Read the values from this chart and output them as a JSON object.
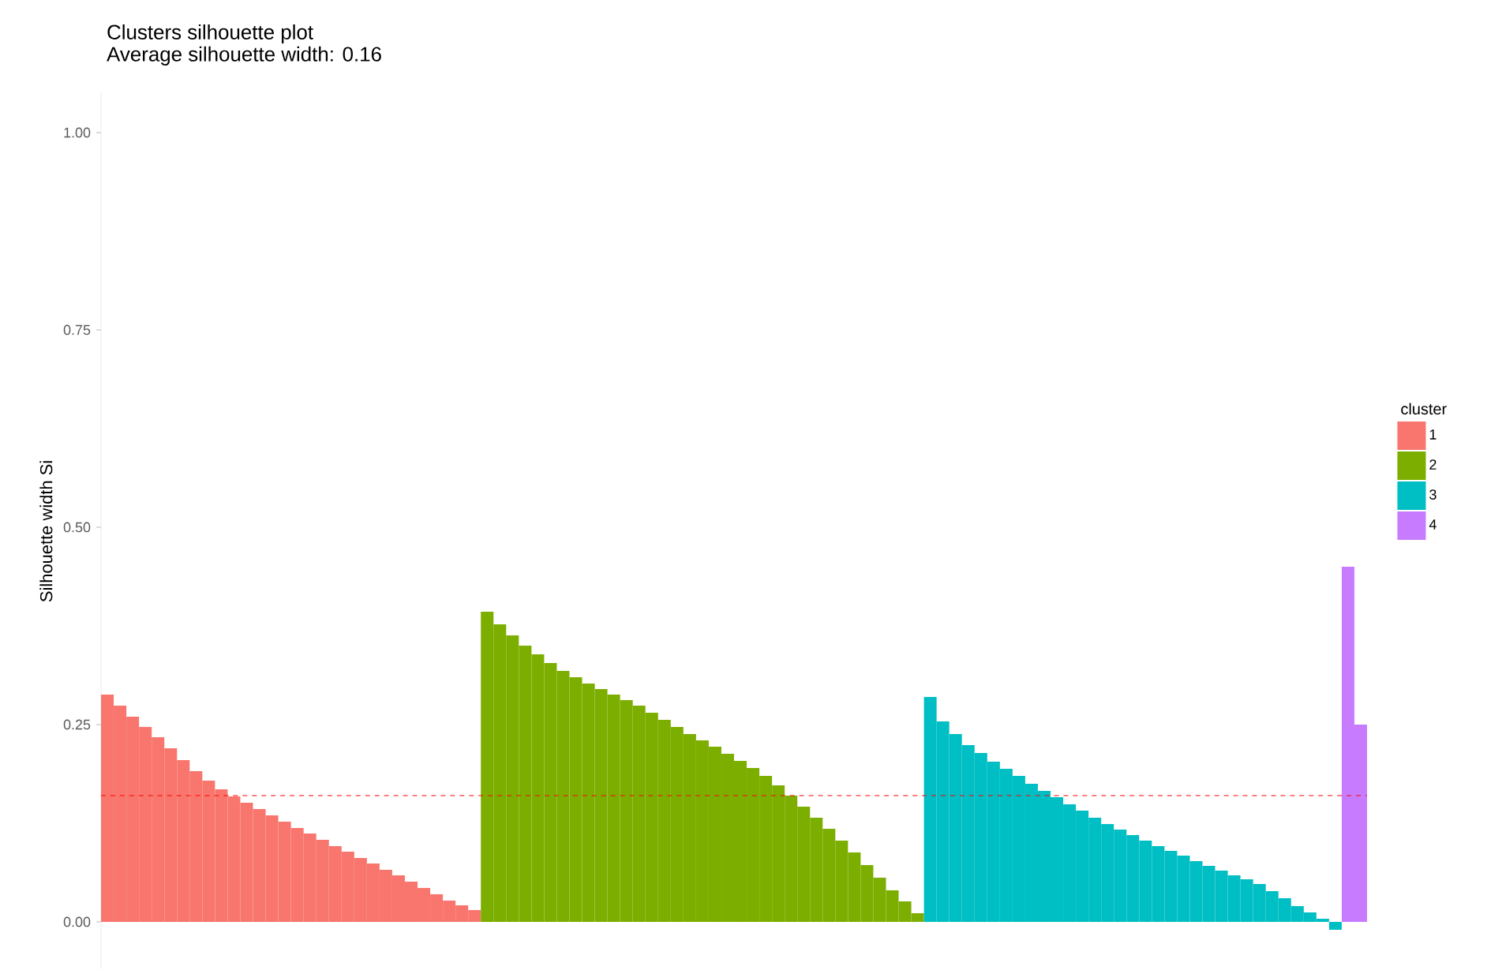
{
  "chart_data": {
    "type": "bar",
    "title": "Clusters silhouette plot",
    "subtitle": "Average silhouette width: 0.16",
    "ylabel": "Silhouette width Si",
    "legend_title": "cluster",
    "legend": "right",
    "tick_labels": "y",
    "grid": false,
    "ylim": [
      -0.06,
      1.05
    ],
    "yticks": [
      {
        "value": 0,
        "label": "0.00"
      },
      {
        "value": 0.25,
        "label": "0.25"
      },
      {
        "value": 0.5,
        "label": "0.50"
      },
      {
        "value": 0.75,
        "label": "0.75"
      },
      {
        "value": 1,
        "label": "1.00"
      }
    ],
    "categories": [
      null,
      null,
      null,
      null,
      null,
      null,
      null,
      null,
      null,
      null,
      null,
      null,
      null,
      null,
      null,
      null,
      null,
      null,
      null,
      null,
      null,
      null,
      null,
      null,
      null,
      null,
      null,
      null,
      null,
      null,
      null,
      null,
      null,
      null,
      null,
      null,
      null,
      null,
      null,
      null,
      null,
      null,
      null,
      null,
      null,
      null,
      null,
      null,
      null,
      null,
      null,
      null,
      null,
      null,
      null,
      null,
      null,
      null,
      null,
      null,
      null,
      null,
      null,
      null,
      null,
      null,
      null,
      null,
      null,
      null,
      null,
      null,
      null,
      null,
      null,
      null,
      null,
      null,
      null,
      null,
      null,
      null,
      null,
      null,
      null,
      null,
      null,
      null,
      null,
      null,
      null,
      null,
      null,
      null,
      null,
      null,
      null,
      null,
      null,
      null
    ],
    "series": [
      {
        "name": "1",
        "color": "#f8766d",
        "values": [
          0.288,
          0.274,
          0.26,
          0.247,
          0.234,
          0.22,
          0.205,
          0.191,
          0.179,
          0.168,
          0.159,
          0.151,
          0.143,
          0.135,
          0.127,
          0.119,
          0.112,
          0.104,
          0.096,
          0.089,
          0.081,
          0.074,
          0.066,
          0.059,
          0.051,
          0.043,
          0.035,
          0.027,
          0.021,
          0.015,
          null,
          null,
          null,
          null,
          null,
          null,
          null,
          null,
          null,
          null,
          null,
          null,
          null,
          null,
          null,
          null,
          null,
          null,
          null,
          null,
          null,
          null,
          null,
          null,
          null,
          null,
          null,
          null,
          null,
          null,
          null,
          null,
          null,
          null,
          null,
          null,
          null,
          null,
          null,
          null,
          null,
          null,
          null,
          null,
          null,
          null,
          null,
          null,
          null,
          null,
          null,
          null,
          null,
          null,
          null,
          null,
          null,
          null,
          null,
          null,
          null,
          null,
          null,
          null,
          null,
          null,
          null,
          null,
          null,
          null
        ]
      },
      {
        "name": "2",
        "color": "#7cae00",
        "values": [
          null,
          null,
          null,
          null,
          null,
          null,
          null,
          null,
          null,
          null,
          null,
          null,
          null,
          null,
          null,
          null,
          null,
          null,
          null,
          null,
          null,
          null,
          null,
          null,
          null,
          null,
          null,
          null,
          null,
          null,
          0.393,
          0.377,
          0.363,
          0.35,
          0.339,
          0.328,
          0.318,
          0.31,
          0.302,
          0.295,
          0.288,
          0.281,
          0.274,
          0.265,
          0.256,
          0.247,
          0.238,
          0.23,
          0.222,
          0.213,
          0.204,
          0.195,
          0.185,
          0.173,
          0.16,
          0.146,
          0.132,
          0.118,
          0.103,
          0.088,
          0.072,
          0.056,
          0.04,
          0.026,
          0.011,
          null,
          null,
          null,
          null,
          null,
          null,
          null,
          null,
          null,
          null,
          null,
          null,
          null,
          null,
          null,
          null,
          null,
          null,
          null,
          null,
          null,
          null,
          null,
          null,
          null,
          null,
          null,
          null,
          null,
          null,
          null,
          null,
          null,
          null,
          null
        ]
      },
      {
        "name": "3",
        "color": "#00bfc4",
        "values": [
          null,
          null,
          null,
          null,
          null,
          null,
          null,
          null,
          null,
          null,
          null,
          null,
          null,
          null,
          null,
          null,
          null,
          null,
          null,
          null,
          null,
          null,
          null,
          null,
          null,
          null,
          null,
          null,
          null,
          null,
          null,
          null,
          null,
          null,
          null,
          null,
          null,
          null,
          null,
          null,
          null,
          null,
          null,
          null,
          null,
          null,
          null,
          null,
          null,
          null,
          null,
          null,
          null,
          null,
          null,
          null,
          null,
          null,
          null,
          null,
          null,
          null,
          null,
          null,
          null,
          0.285,
          0.254,
          0.238,
          0.224,
          0.214,
          0.203,
          0.194,
          0.185,
          0.175,
          0.166,
          0.158,
          0.149,
          0.141,
          0.132,
          0.124,
          0.117,
          0.11,
          0.103,
          0.096,
          0.09,
          0.084,
          0.077,
          0.071,
          0.065,
          0.059,
          0.054,
          0.048,
          0.039,
          0.03,
          0.02,
          0.012,
          0.004,
          -0.01,
          null,
          null
        ]
      },
      {
        "name": "4",
        "color": "#c77cff",
        "values": [
          null,
          null,
          null,
          null,
          null,
          null,
          null,
          null,
          null,
          null,
          null,
          null,
          null,
          null,
          null,
          null,
          null,
          null,
          null,
          null,
          null,
          null,
          null,
          null,
          null,
          null,
          null,
          null,
          null,
          null,
          null,
          null,
          null,
          null,
          null,
          null,
          null,
          null,
          null,
          null,
          null,
          null,
          null,
          null,
          null,
          null,
          null,
          null,
          null,
          null,
          null,
          null,
          null,
          null,
          null,
          null,
          null,
          null,
          null,
          null,
          null,
          null,
          null,
          null,
          null,
          null,
          null,
          null,
          null,
          null,
          null,
          null,
          null,
          null,
          null,
          null,
          null,
          null,
          null,
          null,
          null,
          null,
          null,
          null,
          null,
          null,
          null,
          null,
          null,
          null,
          null,
          null,
          null,
          null,
          null,
          null,
          null,
          null,
          0.45,
          0.25
        ]
      }
    ],
    "ref_lines": [
      {
        "axis": "y",
        "value": 0.16,
        "color": "#ff0000",
        "line_style": "dashed"
      }
    ]
  }
}
